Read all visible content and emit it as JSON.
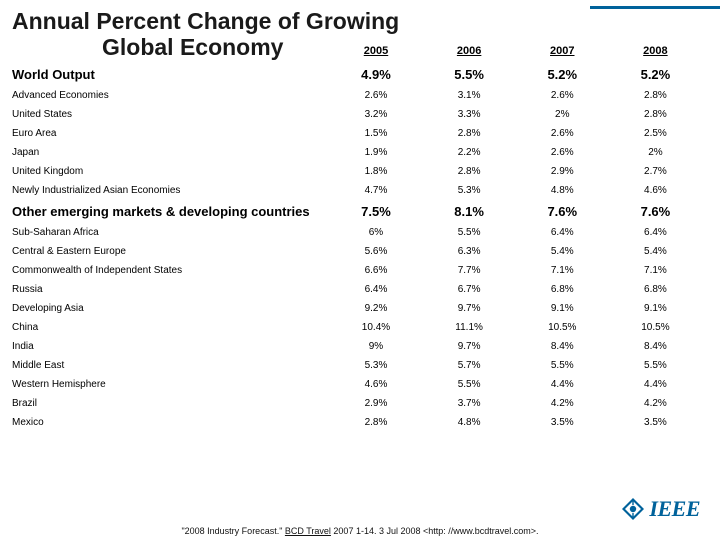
{
  "accent_color": "#00629b",
  "title_line1": "Annual Percent Change of Growing",
  "title_line2": "Global Economy",
  "years": [
    "2005",
    "2006",
    "2007",
    "2008"
  ],
  "rows": [
    {
      "label": "World Output",
      "bold": true,
      "vals": [
        "4.9%",
        "5.5%",
        "5.2%",
        "5.2%"
      ]
    },
    {
      "label": "Advanced Economies",
      "bold": false,
      "vals": [
        "2.6%",
        "3.1%",
        "2.6%",
        "2.8%"
      ]
    },
    {
      "label": "United States",
      "bold": false,
      "vals": [
        "3.2%",
        "3.3%",
        "2%",
        "2.8%"
      ]
    },
    {
      "label": "Euro Area",
      "bold": false,
      "vals": [
        "1.5%",
        "2.8%",
        "2.6%",
        "2.5%"
      ]
    },
    {
      "label": "Japan",
      "bold": false,
      "vals": [
        "1.9%",
        "2.2%",
        "2.6%",
        "2%"
      ]
    },
    {
      "label": "United Kingdom",
      "bold": false,
      "vals": [
        "1.8%",
        "2.8%",
        "2.9%",
        "2.7%"
      ]
    },
    {
      "label": "Newly Industrialized Asian Economies",
      "bold": false,
      "vals": [
        "4.7%",
        "5.3%",
        "4.8%",
        "4.6%"
      ]
    },
    {
      "label": "Other emerging markets & developing countries",
      "bold": true,
      "vals": [
        "7.5%",
        "8.1%",
        "7.6%",
        "7.6%"
      ]
    },
    {
      "label": "Sub-Saharan Africa",
      "bold": false,
      "vals": [
        "6%",
        "5.5%",
        "6.4%",
        "6.4%"
      ]
    },
    {
      "label": "Central & Eastern Europe",
      "bold": false,
      "vals": [
        "5.6%",
        "6.3%",
        "5.4%",
        "5.4%"
      ]
    },
    {
      "label": "Commonwealth of Independent States",
      "bold": false,
      "vals": [
        "6.6%",
        "7.7%",
        "7.1%",
        "7.1%"
      ]
    },
    {
      "label": "Russia",
      "bold": false,
      "vals": [
        "6.4%",
        "6.7%",
        "6.8%",
        "6.8%"
      ]
    },
    {
      "label": "Developing Asia",
      "bold": false,
      "vals": [
        "9.2%",
        "9.7%",
        "9.1%",
        "9.1%"
      ]
    },
    {
      "label": "China",
      "bold": false,
      "vals": [
        "10.4%",
        "11.1%",
        "10.5%",
        "10.5%"
      ]
    },
    {
      "label": "India",
      "bold": false,
      "vals": [
        "9%",
        "9.7%",
        "8.4%",
        "8.4%"
      ]
    },
    {
      "label": "Middle East",
      "bold": false,
      "vals": [
        "5.3%",
        "5.7%",
        "5.5%",
        "5.5%"
      ]
    },
    {
      "label": "Western Hemisphere",
      "bold": false,
      "vals": [
        "4.6%",
        "5.5%",
        "4.4%",
        "4.4%"
      ]
    },
    {
      "label": "Brazil",
      "bold": false,
      "vals": [
        "2.9%",
        "3.7%",
        "4.2%",
        "4.2%"
      ]
    },
    {
      "label": "Mexico",
      "bold": false,
      "vals": [
        "2.8%",
        "4.8%",
        "3.5%",
        "3.5%"
      ]
    }
  ],
  "footer_prefix": "\"2008 Industry Forecast.\" ",
  "footer_source": "BCD Travel",
  "footer_suffix": " 2007 1-14. 3 Jul 2008 <http: //www.bcdtravel.com>.",
  "logo_text": "IEEE"
}
